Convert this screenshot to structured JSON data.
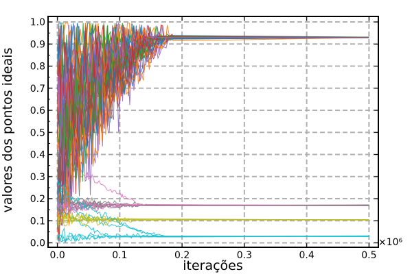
{
  "chart_data": {
    "type": "line",
    "xlabel": "iterações",
    "ylabel": "valores dos pontos ideais",
    "x_scale_note": "×10⁶",
    "xlim": [
      -0.015,
      0.515
    ],
    "ylim": [
      -0.02,
      1.025
    ],
    "x_ticks": [
      0.0,
      0.1,
      0.2,
      0.3,
      0.4,
      0.5
    ],
    "x_tick_labels": [
      "0.0",
      "0.1",
      "0.2",
      "0.3",
      "0.4",
      "0.5"
    ],
    "y_ticks": [
      0.0,
      0.1,
      0.2,
      0.3,
      0.4,
      0.5,
      0.6,
      0.7,
      0.8,
      0.9,
      1.0
    ],
    "y_tick_labels": [
      "0.0",
      "0.1",
      "0.2",
      "0.3",
      "0.4",
      "0.5",
      "0.6",
      "0.7",
      "0.8",
      "0.9",
      "1.0"
    ],
    "grid": true,
    "grid_style": "dashed",
    "legend": "none",
    "series_count": 60,
    "converged_levels": [
      0.93,
      0.17,
      0.105,
      0.03
    ],
    "x_max": 0.5,
    "palette": [
      "#1f77b4",
      "#ff7f0e",
      "#2ca02c",
      "#d62728",
      "#9467bd",
      "#8c564b",
      "#e377c2",
      "#7f7f7f",
      "#bcbd22",
      "#17becf"
    ]
  }
}
